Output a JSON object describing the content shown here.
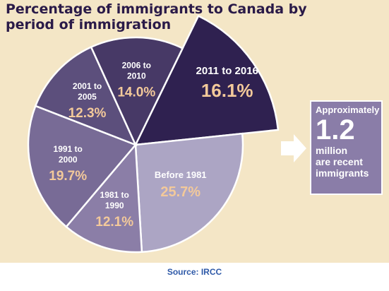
{
  "chart_data": {
    "type": "pie",
    "title": "Percentage of immigrants to Canada by period of immigration",
    "slices": [
      {
        "label": "2011 to 2016",
        "value": 16.1,
        "value_label": "16.1%",
        "color": "#2f2150",
        "exploded": true
      },
      {
        "label": "Before 1981",
        "value": 25.7,
        "value_label": "25.7%",
        "color": "#aca5c4",
        "exploded": false
      },
      {
        "label": "1981 to 1990",
        "value": 12.1,
        "value_label": "12.1%",
        "color": "#8b7ea7",
        "exploded": false
      },
      {
        "label": "1991 to 2000",
        "value": 19.7,
        "value_label": "19.7%",
        "color": "#786b96",
        "exploded": false
      },
      {
        "label": "2001 to 2005",
        "value": 12.3,
        "value_label": "12.3%",
        "color": "#5c4f7c",
        "exploded": false
      },
      {
        "label": "2006 to 2010",
        "value": 14.0,
        "value_label": "14.0%",
        "color": "#473966",
        "exploded": false
      }
    ],
    "legend": "none"
  },
  "callout": {
    "prefix": "Approximately",
    "value": "1.2",
    "suffix_line1": "million",
    "suffix_line2": "are recent",
    "suffix_line3": "immigrants"
  },
  "source": "Source: IRCC",
  "colors": {
    "background": "#f4e6c6",
    "title": "#2a1a48",
    "value_text": "#f3c99a",
    "label_text": "#ffffff",
    "source_text": "#2e59a8",
    "callout_box": "#8a7da8"
  }
}
